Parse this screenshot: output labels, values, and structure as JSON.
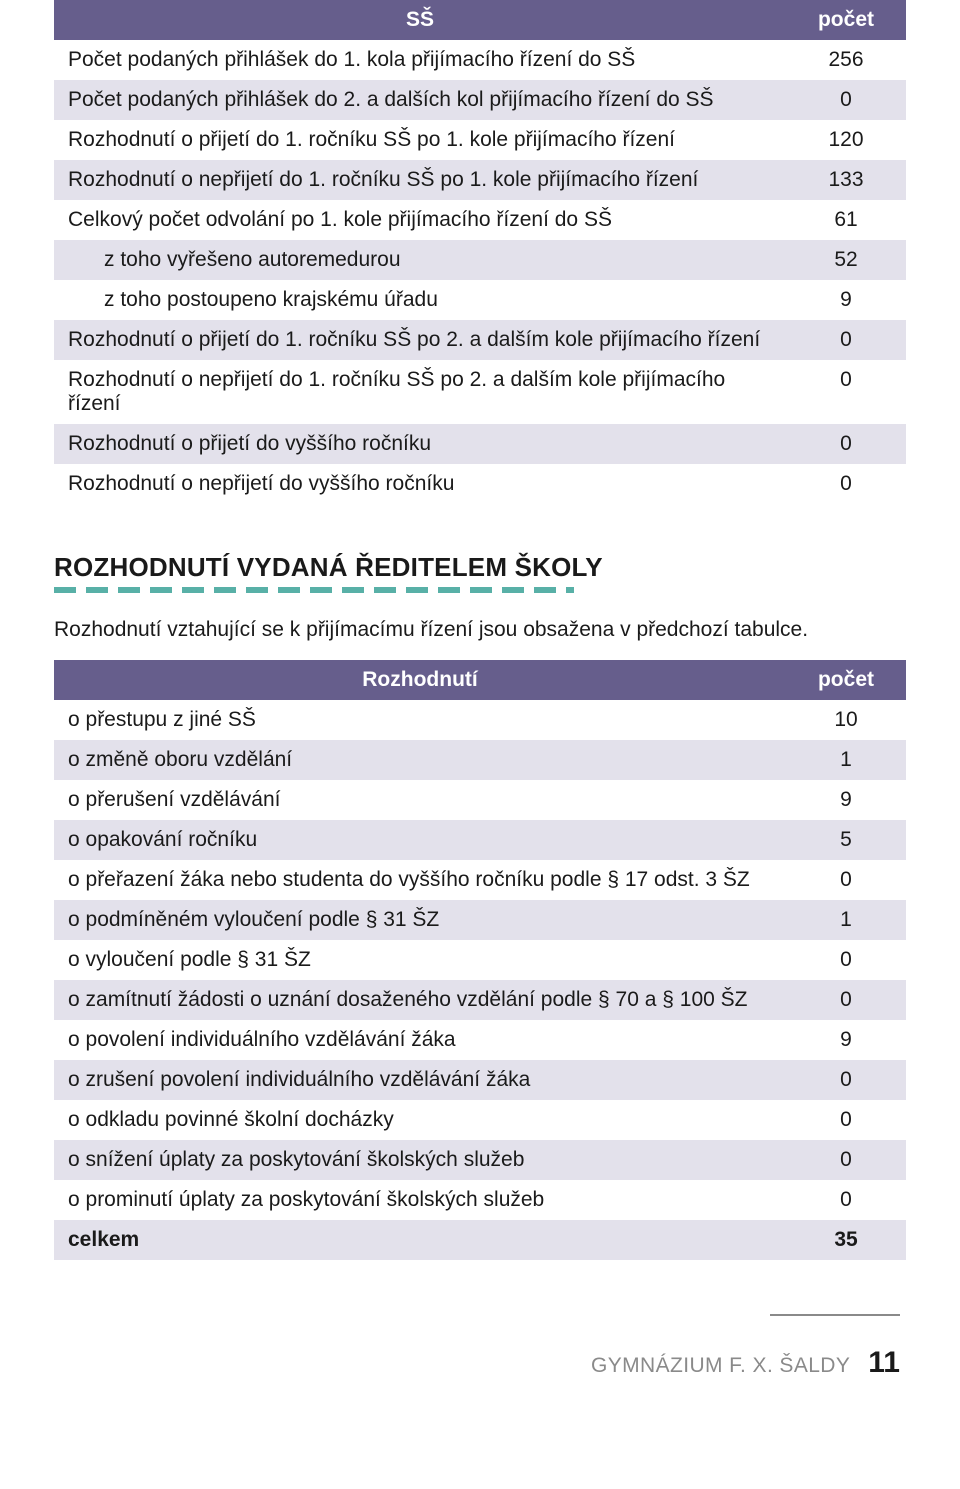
{
  "colors": {
    "header_bg": "#665e8c",
    "header_fg": "#ffffff",
    "row_alt_bg": "#e3e1eb",
    "text": "#1a1a1a",
    "dash": "#58b0a7",
    "footer_grey": "#8a8a8a"
  },
  "table1": {
    "header_left": "SŠ",
    "header_right": "počet",
    "rows": [
      {
        "label": "Počet podaných přihlášek do 1. kola přijímacího řízení do SŠ",
        "value": "256",
        "indent": false
      },
      {
        "label": "Počet podaných přihlášek do 2. a dalších kol přijímacího řízení do SŠ",
        "value": "0",
        "indent": false
      },
      {
        "label": "Rozhodnutí o přijetí do 1. ročníku SŠ po 1. kole přijímacího řízení",
        "value": "120",
        "indent": false
      },
      {
        "label": "Rozhodnutí o nepřijetí do 1. ročníku SŠ po 1. kole přijímacího řízení",
        "value": "133",
        "indent": false
      },
      {
        "label": "Celkový počet odvolání po 1. kole přijímacího řízení do SŠ",
        "value": "61",
        "indent": false
      },
      {
        "label": "z toho vyřešeno autoremedurou",
        "value": "52",
        "indent": true
      },
      {
        "label": "z toho postoupeno krajskému úřadu",
        "value": "9",
        "indent": true
      },
      {
        "label": "Rozhodnutí o přijetí do 1. ročníku SŠ po 2. a dalším kole přijímacího řízení",
        "value": "0",
        "indent": false
      },
      {
        "label": "Rozhodnutí o nepřijetí do 1. ročníku SŠ po 2. a dalším kole přijímacího řízení",
        "value": "0",
        "indent": false
      },
      {
        "label": "Rozhodnutí o přijetí do vyššího ročníku",
        "value": "0",
        "indent": false
      },
      {
        "label": "Rozhodnutí o nepřijetí do vyššího ročníku",
        "value": "0",
        "indent": false
      }
    ]
  },
  "section_title": "ROZHODNUTÍ VYDANÁ ŘEDITELEM ŠKOLY",
  "section_lead": "Rozhodnutí vztahující se k přijímacímu řízení jsou obsažena v předchozí tabulce.",
  "table2": {
    "header_left": "Rozhodnutí",
    "header_right": "počet",
    "rows": [
      {
        "label": "o přestupu z jiné SŠ",
        "value": "10",
        "bold": false
      },
      {
        "label": "o změně oboru vzdělání",
        "value": "1",
        "bold": false
      },
      {
        "label": "o přerušení vzdělávání",
        "value": "9",
        "bold": false
      },
      {
        "label": "o opakování ročníku",
        "value": "5",
        "bold": false
      },
      {
        "label": "o přeřazení žáka nebo studenta do vyššího ročníku podle § 17 odst. 3 ŠZ",
        "value": "0",
        "bold": false
      },
      {
        "label": "o podmíněném vyloučení podle § 31 ŠZ",
        "value": "1",
        "bold": false
      },
      {
        "label": "o vyloučení podle § 31 ŠZ",
        "value": "0",
        "bold": false
      },
      {
        "label": "o zamítnutí žádosti o uznání dosaženého vzdělání podle § 70 a § 100 ŠZ",
        "value": "0",
        "bold": false
      },
      {
        "label": "o povolení individuálního vzdělávání žáka",
        "value": "9",
        "bold": false
      },
      {
        "label": "o zrušení povolení individuálního vzdělávání žáka",
        "value": "0",
        "bold": false
      },
      {
        "label": "o odkladu povinné školní docházky",
        "value": "0",
        "bold": false
      },
      {
        "label": "o snížení úplaty za poskytování školských služeb",
        "value": "0",
        "bold": false
      },
      {
        "label": "o prominutí úplaty za poskytování školských služeb",
        "value": "0",
        "bold": false
      },
      {
        "label": "celkem",
        "value": "35",
        "bold": true
      }
    ]
  },
  "footer": {
    "label": "GYMNÁZIUM F. X. ŠALDY",
    "page": "11"
  }
}
